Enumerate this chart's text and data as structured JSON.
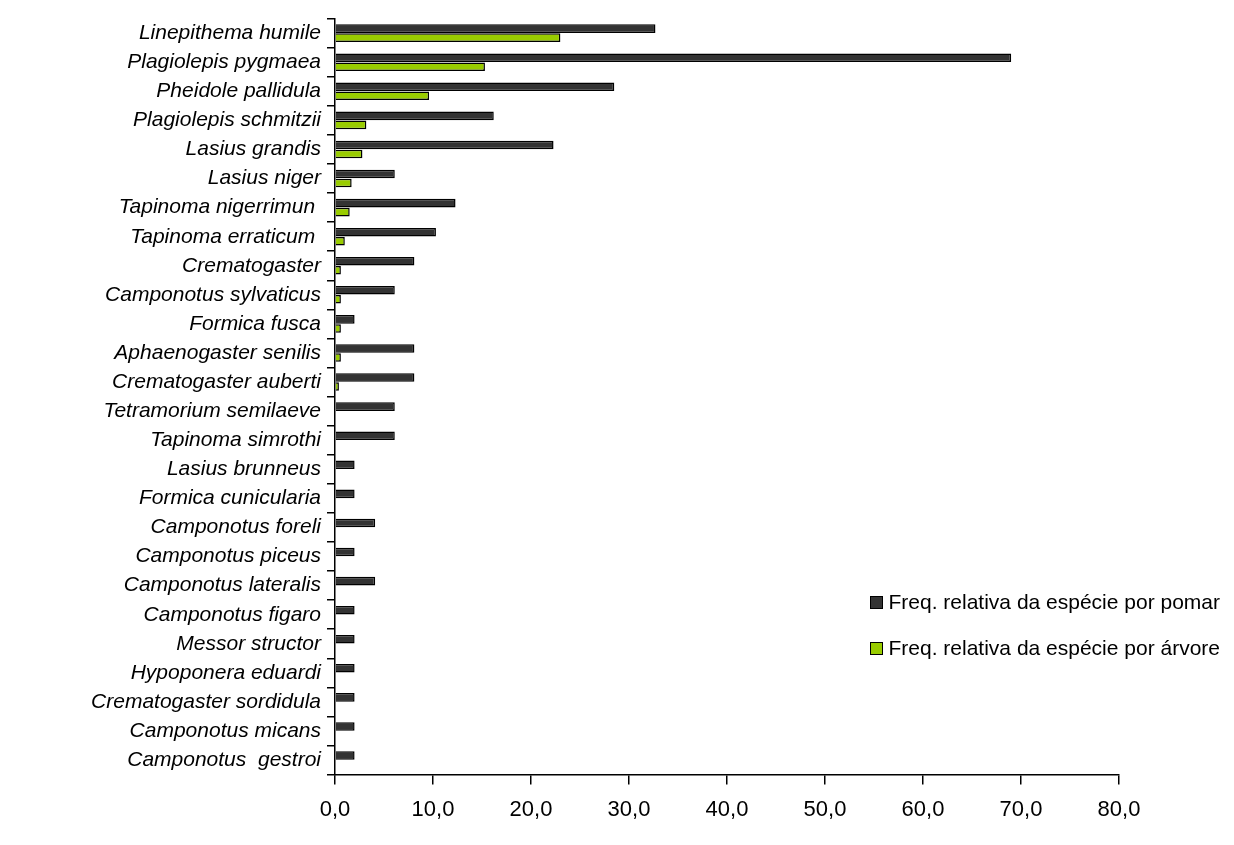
{
  "chart_data": {
    "type": "bar",
    "orientation": "horizontal",
    "categories": [
      "Linepithema humile",
      "Plagiolepis pygmaea",
      "Pheidole pallidula",
      "Plagiolepis schmitzii",
      "Lasius grandis",
      "Lasius niger",
      "Tapinoma nigerrimun ",
      "Tapinoma erraticum ",
      "Crematogaster",
      "Camponotus sylvaticus",
      "Formica fusca",
      "Aphaenogaster senilis",
      "Crematogaster auberti",
      "Tetramorium semilaeve",
      "Tapinoma simrothi",
      "Lasius brunneus",
      "Formica cunicularia",
      "Camponotus foreli",
      "Camponotus piceus",
      "Camponotus lateralis",
      "Camponotus figaro",
      "Messor structor",
      "Hypoponera eduardi",
      "Crematogaster sordidula",
      "Camponotus micans",
      "Camponotus  gestroi"
    ],
    "series": [
      {
        "name": "Freq. relativa da espécie por pomar",
        "color": "#333333",
        "values": [
          32.7,
          69.0,
          28.5,
          16.2,
          22.3,
          6.1,
          12.3,
          10.3,
          8.1,
          6.1,
          2.0,
          8.1,
          8.1,
          6.1,
          6.1,
          2.0,
          2.0,
          4.1,
          2.0,
          4.1,
          2.0,
          2.0,
          2.0,
          2.0,
          2.0,
          2.0
        ]
      },
      {
        "name": "Freq. relativa da espécie por árvore",
        "color": "#99cc00",
        "values": [
          23.0,
          15.3,
          9.6,
          3.2,
          2.8,
          1.7,
          1.5,
          1.0,
          0.6,
          0.6,
          0.6,
          0.6,
          0.4,
          null,
          null,
          null,
          null,
          null,
          null,
          null,
          null,
          null,
          null,
          null,
          null,
          null
        ]
      }
    ],
    "xlim": [
      0,
      80
    ],
    "xticks": [
      {
        "value": 0,
        "label": "0,0"
      },
      {
        "value": 10,
        "label": "10,0"
      },
      {
        "value": 20,
        "label": "20,0"
      },
      {
        "value": 30,
        "label": "30,0"
      },
      {
        "value": 40,
        "label": "40,0"
      },
      {
        "value": 50,
        "label": "50,0"
      },
      {
        "value": 60,
        "label": "60,0"
      },
      {
        "value": 70,
        "label": "70,0"
      },
      {
        "value": 80,
        "label": "80,0"
      }
    ],
    "grid": false,
    "legend": "bottom right"
  }
}
